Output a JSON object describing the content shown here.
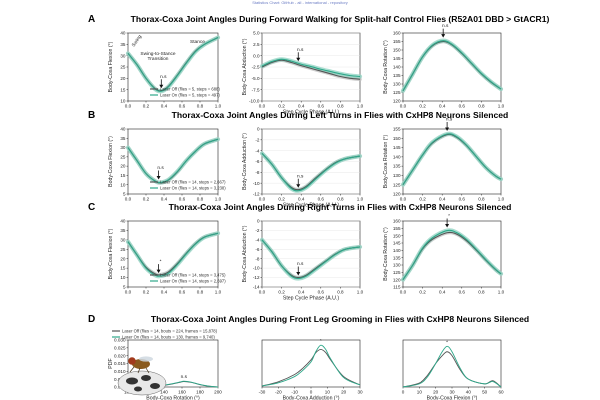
{
  "page": {
    "header_text": "Statistics Chart: GitHub - all - international - repository",
    "colors": {
      "laser_off": "#555555",
      "laser_on": "#2ea88a",
      "band_off": "#bdbdbd",
      "band_on": "#8fd3c1"
    }
  },
  "rows": [
    {
      "letter": "A",
      "title": "Thorax-Coxa Joint Angles During Forward Walking for Split-half Control Flies (R52A01 DBD > GtACR1)",
      "xlabel": "Step Cycle Phase (A.U.)",
      "xticks": [
        "0.0",
        "0.2",
        "0.4",
        "0.6",
        "0.8",
        "1.0"
      ],
      "legend": [
        "Laser Off (flies = 5, steps = 688)",
        "Laser On (flies = 5, steps = 497)"
      ],
      "texts": {
        "swing": "Swing",
        "stance": "Stance",
        "transition": "Swing-to-Stance\nTransition"
      },
      "panels": [
        {
          "ylabel": "Body-Coxa Flexion (°)",
          "ymin": 10,
          "ymax": 40,
          "yticks": [
            "10",
            "15",
            "20",
            "25",
            "30",
            "35",
            "40"
          ],
          "annot": "n.s",
          "annot_x": 0.37
        },
        {
          "ylabel": "Body-Coxa Abduction (°)",
          "ymin": -10,
          "ymax": 5,
          "yticks": [
            "-10.0",
            "-7.5",
            "-5.0",
            "-2.5",
            "0.0",
            "2.5",
            "5.0"
          ],
          "annot": "n.s",
          "annot_x": 0.37
        },
        {
          "ylabel": "Body-Coxa Rotation (°)",
          "ymin": 120,
          "ymax": 160,
          "yticks": [
            "120",
            "125",
            "130",
            "135",
            "140",
            "145",
            "150",
            "155",
            "160"
          ],
          "annot": "n.s",
          "annot_x": 0.41
        }
      ]
    },
    {
      "letter": "B",
      "title": "Thorax-Coxa Joint Angles During Left Turns in Flies with CxHP8 Neurons Silenced",
      "xlabel": "Step Cycle Phase (A.U.)",
      "xticks": [
        "0.0",
        "0.2",
        "0.4",
        "0.6",
        "0.8",
        "1.0"
      ],
      "legend": [
        "Laser Off (flies = 14, steps = 2,667)",
        "Laser On (flies = 14, steps = 3,238)"
      ],
      "panels": [
        {
          "ylabel": "Body-Coxa Flexion (°)",
          "ymin": 5,
          "ymax": 40,
          "yticks": [
            "5",
            "10",
            "15",
            "20",
            "25",
            "30",
            "35",
            "40"
          ],
          "annot": "n.s",
          "annot_x": 0.34
        },
        {
          "ylabel": "Body-Coxa Adduction (°)",
          "ymin": -12,
          "ymax": 0,
          "yticks": [
            "-12",
            "-10",
            "-8",
            "-6",
            "-4",
            "-2",
            "0"
          ],
          "annot": "n.s",
          "annot_x": 0.37
        },
        {
          "ylabel": "Body-Coxa Rotation (°)",
          "ymin": 120,
          "ymax": 155,
          "yticks": [
            "120",
            "125",
            "130",
            "135",
            "140",
            "145",
            "150",
            "155"
          ],
          "annot": "n.s",
          "annot_x": 0.45
        }
      ]
    },
    {
      "letter": "C",
      "title": "Thorax-Coxa Joint Angles During Right Turns in Flies with CxHP8 Neurons Silenced",
      "xlabel": "Step Cycle Phase (A.U.)",
      "xticks": [
        "0.0",
        "0.2",
        "0.4",
        "0.6",
        "0.8",
        "1.0"
      ],
      "legend": [
        "Laser Off (flies = 14, steps = 3,475)",
        "Laser On (flies = 14, steps = 2,697)"
      ],
      "panels": [
        {
          "ylabel": "Body-Coxa Flexion (°)",
          "ymin": 5,
          "ymax": 40,
          "yticks": [
            "5",
            "10",
            "15",
            "20",
            "25",
            "30",
            "35",
            "40"
          ],
          "annot": "*",
          "annot_x": 0.34
        },
        {
          "ylabel": "Body-Coxa Abduction (°)",
          "ymin": -14,
          "ymax": 0,
          "yticks": [
            "-14",
            "-12",
            "-10",
            "-8",
            "-6",
            "-4",
            "-2",
            "0"
          ],
          "annot": "n.s",
          "annot_x": 0.37
        },
        {
          "ylabel": "Body-Coxa Rotation (°)",
          "ymin": 115,
          "ymax": 160,
          "yticks": [
            "115",
            "120",
            "125",
            "130",
            "135",
            "140",
            "145",
            "150",
            "155",
            "160"
          ],
          "annot": "*",
          "annot_x": 0.45
        }
      ]
    }
  ],
  "rowD": {
    "letter": "D",
    "title": "Thorax-Coxa Joint Angles During Front Leg Grooming in Flies with CxHP8 Neurons Silenced",
    "ylabel": "PDF",
    "legend": [
      "Laser Off (flies = 14, bouts = 224, frames = 15,878)",
      "Laser On (flies = 14, bouts = 130, frames = 9,740)"
    ],
    "panels": [
      {
        "xlabel": "Body-Coxa Rotation (°)",
        "xmin": 100,
        "xmax": 200,
        "xticks": [
          "100",
          "120",
          "140",
          "160",
          "180",
          "200"
        ],
        "ymin": 0,
        "ymax": 0.03,
        "yticks": [
          "0.000",
          "0.005",
          "0.010",
          "0.015",
          "0.020",
          "0.025",
          "0.030"
        ],
        "annot": "n.s",
        "annot_x": 162
      },
      {
        "xlabel": "Body-Coxa Adduction (°)",
        "xmin": -30,
        "xmax": 30,
        "xticks": [
          "-30",
          "-20",
          "-10",
          "0",
          "10",
          "20",
          "30"
        ],
        "annot": "*",
        "annot_x": 6
      },
      {
        "xlabel": "Body-Coxa Flexion (°)",
        "xmin": 0,
        "xmax": 60,
        "xticks": [
          "0",
          "10",
          "20",
          "30",
          "40",
          "50",
          "60"
        ],
        "annot": "*",
        "annot_x": 27
      }
    ]
  },
  "chart_data": [
    {
      "type": "line",
      "row": "A",
      "panel": "flexion",
      "title": "Thorax-Coxa Joint Angles During Forward Walking for Split-half Control Flies (R52A01 DBD > GtACR1)",
      "xlabel": "Step Cycle Phase (A.U.)",
      "ylabel": "Body-Coxa Flexion (°)",
      "xlim": [
        0,
        1
      ],
      "ylim": [
        10,
        40
      ],
      "x": [
        0,
        0.1,
        0.2,
        0.3,
        0.37,
        0.45,
        0.55,
        0.65,
        0.75,
        0.85,
        1.0
      ],
      "series": [
        {
          "name": "Laser Off",
          "values": [
            31,
            26,
            20,
            15.5,
            14.5,
            16.5,
            21.5,
            27,
            32,
            35,
            38
          ]
        },
        {
          "name": "Laser On",
          "values": [
            31,
            26,
            20,
            15.3,
            14.3,
            16.3,
            21.3,
            26.8,
            31.8,
            35,
            38
          ]
        }
      ]
    },
    {
      "type": "line",
      "row": "A",
      "panel": "abduction",
      "xlabel": "Step Cycle Phase (A.U.)",
      "ylabel": "Body-Coxa Abduction (°)",
      "xlim": [
        0,
        1
      ],
      "ylim": [
        -10,
        5
      ],
      "x": [
        0,
        0.1,
        0.2,
        0.3,
        0.4,
        0.5,
        0.6,
        0.7,
        0.8,
        0.9,
        1.0
      ],
      "series": [
        {
          "name": "Laser Off",
          "values": [
            -2.5,
            -1.5,
            -1.0,
            -1.5,
            -2.2,
            -2.8,
            -3.4,
            -4.0,
            -4.6,
            -5.0,
            -5.2
          ]
        },
        {
          "name": "Laser On",
          "values": [
            -2.3,
            -1.3,
            -0.8,
            -1.2,
            -1.9,
            -2.4,
            -3.0,
            -3.5,
            -4.0,
            -4.4,
            -4.6
          ]
        }
      ]
    },
    {
      "type": "line",
      "row": "A",
      "panel": "rotation",
      "xlabel": "Step Cycle Phase (A.U.)",
      "ylabel": "Body-Coxa Rotation (°)",
      "xlim": [
        0,
        1
      ],
      "ylim": [
        120,
        160
      ],
      "x": [
        0,
        0.1,
        0.2,
        0.3,
        0.41,
        0.5,
        0.6,
        0.7,
        0.8,
        0.9,
        1.0
      ],
      "series": [
        {
          "name": "Laser Off",
          "values": [
            126,
            136,
            146,
            152.5,
            155,
            153,
            148,
            142,
            136,
            131,
            127
          ]
        },
        {
          "name": "Laser On",
          "values": [
            126,
            136,
            146,
            152.8,
            155.5,
            153.3,
            148.3,
            142.2,
            136.2,
            131.2,
            127
          ]
        }
      ]
    },
    {
      "type": "line",
      "row": "B",
      "panel": "flexion",
      "title": "Thorax-Coxa Joint Angles During Left Turns in Flies with CxHP8 Neurons Silenced",
      "xlabel": "Step Cycle Phase (A.U.)",
      "ylabel": "Body-Coxa Flexion (°)",
      "xlim": [
        0,
        1
      ],
      "ylim": [
        5,
        40
      ],
      "x": [
        0,
        0.1,
        0.2,
        0.3,
        0.36,
        0.45,
        0.55,
        0.65,
        0.75,
        0.85,
        1.0
      ],
      "series": [
        {
          "name": "Laser Off",
          "values": [
            30,
            23,
            16,
            12,
            11,
            12.5,
            17,
            23,
            28,
            32,
            34.5
          ]
        },
        {
          "name": "Laser On",
          "values": [
            30,
            23,
            16,
            12,
            11.2,
            12.7,
            17.2,
            23,
            28,
            32,
            34.5
          ]
        }
      ]
    },
    {
      "type": "line",
      "row": "B",
      "panel": "adduction",
      "xlabel": "Step Cycle Phase (A.U.)",
      "ylabel": "Body-Coxa Adduction (°)",
      "xlim": [
        0,
        1
      ],
      "ylim": [
        -12,
        0
      ],
      "x": [
        0,
        0.1,
        0.2,
        0.3,
        0.37,
        0.45,
        0.55,
        0.65,
        0.75,
        0.85,
        1.0
      ],
      "series": [
        {
          "name": "Laser Off",
          "values": [
            -4.5,
            -6.5,
            -9,
            -10.8,
            -11.2,
            -10.6,
            -9,
            -7.5,
            -6.2,
            -5.5,
            -5
          ]
        },
        {
          "name": "Laser On",
          "values": [
            -4.5,
            -6.5,
            -9,
            -11,
            -11.4,
            -10.8,
            -9.2,
            -7.6,
            -6.3,
            -5.5,
            -5
          ]
        }
      ]
    },
    {
      "type": "line",
      "row": "B",
      "panel": "rotation",
      "xlabel": "Step Cycle Phase (A.U.)",
      "ylabel": "Body-Coxa Rotation (°)",
      "xlim": [
        0,
        1
      ],
      "ylim": [
        120,
        155
      ],
      "x": [
        0,
        0.1,
        0.2,
        0.3,
        0.45,
        0.55,
        0.65,
        0.75,
        0.85,
        0.95,
        1.0
      ],
      "series": [
        {
          "name": "Laser Off",
          "values": [
            125,
            133,
            141,
            147.5,
            152,
            150.5,
            146,
            140,
            134,
            129.5,
            128
          ]
        },
        {
          "name": "Laser On",
          "values": [
            125,
            133,
            141,
            147.8,
            152.3,
            150.8,
            146.2,
            140,
            134,
            129.5,
            128
          ]
        }
      ]
    },
    {
      "type": "line",
      "row": "C",
      "panel": "flexion",
      "title": "Thorax-Coxa Joint Angles During Right Turns in Flies with CxHP8 Neurons Silenced",
      "xlabel": "Step Cycle Phase (A.U.)",
      "ylabel": "Body-Coxa Flexion (°)",
      "xlim": [
        0,
        1
      ],
      "ylim": [
        5,
        40
      ],
      "x": [
        0,
        0.1,
        0.2,
        0.3,
        0.36,
        0.45,
        0.55,
        0.65,
        0.75,
        0.85,
        1.0
      ],
      "series": [
        {
          "name": "Laser Off",
          "values": [
            29,
            22,
            15.5,
            12,
            11.5,
            13,
            17.5,
            23,
            28,
            31.5,
            33.5
          ]
        },
        {
          "name": "Laser On",
          "values": [
            29,
            22,
            15,
            11.3,
            10.8,
            12.3,
            17,
            22.7,
            27.8,
            31.4,
            33.5
          ]
        }
      ]
    },
    {
      "type": "line",
      "row": "C",
      "panel": "abduction",
      "xlabel": "Step Cycle Phase (A.U.)",
      "ylabel": "Body-Coxa Abduction (°)",
      "xlim": [
        0,
        1
      ],
      "ylim": [
        -14,
        0
      ],
      "x": [
        0,
        0.1,
        0.2,
        0.3,
        0.37,
        0.45,
        0.55,
        0.65,
        0.75,
        0.85,
        1.0
      ],
      "series": [
        {
          "name": "Laser Off",
          "values": [
            -4,
            -6.5,
            -9.5,
            -11.5,
            -12,
            -11.5,
            -10,
            -8.5,
            -7,
            -6,
            -5.5
          ]
        },
        {
          "name": "Laser On",
          "values": [
            -4,
            -6.5,
            -9.5,
            -11.7,
            -12.2,
            -11.7,
            -10.2,
            -8.6,
            -7.1,
            -6,
            -5.5
          ]
        }
      ]
    },
    {
      "type": "line",
      "row": "C",
      "panel": "rotation",
      "xlabel": "Step Cycle Phase (A.U.)",
      "ylabel": "Body-Coxa Rotation (°)",
      "xlim": [
        0,
        1
      ],
      "ylim": [
        115,
        160
      ],
      "x": [
        0,
        0.1,
        0.2,
        0.3,
        0.45,
        0.55,
        0.65,
        0.75,
        0.85,
        0.95,
        1.0
      ],
      "series": [
        {
          "name": "Laser Off",
          "values": [
            120,
            130,
            141,
            147.5,
            152,
            151,
            146.5,
            140,
            133,
            126.5,
            124
          ]
        },
        {
          "name": "Laser On",
          "values": [
            120,
            130,
            141.5,
            148.5,
            153.5,
            152,
            147.3,
            140.5,
            133.3,
            126.7,
            124
          ]
        }
      ]
    },
    {
      "type": "line",
      "row": "D",
      "panel": "rotation-pdf",
      "title": "Thorax-Coxa Joint Angles During Front Leg Grooming in Flies with CxHP8 Neurons Silenced",
      "xlabel": "Body-Coxa Rotation (°)",
      "ylabel": "PDF",
      "xlim": [
        100,
        200
      ],
      "ylim": [
        0,
        0.03
      ],
      "x": [
        100,
        110,
        120,
        130,
        140,
        150,
        158,
        162,
        170,
        180,
        190,
        200
      ],
      "series": [
        {
          "name": "Laser Off",
          "values": [
            0.0,
            0.0,
            0.0,
            0.0005,
            0.001,
            0.002,
            0.003,
            0.0035,
            0.003,
            0.0015,
            0.0005,
            0.0
          ]
        },
        {
          "name": "Laser On",
          "values": [
            0.0,
            0.0,
            0.0,
            0.0005,
            0.0012,
            0.0022,
            0.0032,
            0.0037,
            0.0031,
            0.0016,
            0.0005,
            0.0
          ]
        }
      ]
    },
    {
      "type": "line",
      "row": "D",
      "panel": "adduction-pdf",
      "xlabel": "Body-Coxa Adduction (°)",
      "xlim": [
        -30,
        30
      ],
      "x": [
        -30,
        -20,
        -10,
        -5,
        0,
        3,
        6,
        9,
        12,
        20,
        30
      ],
      "series": [
        {
          "name": "Laser Off",
          "values": [
            0.001,
            0.005,
            0.012,
            0.018,
            0.026,
            0.033,
            0.036,
            0.033,
            0.026,
            0.01,
            0.002
          ]
        },
        {
          "name": "Laser On",
          "values": [
            0.001,
            0.004,
            0.01,
            0.016,
            0.024,
            0.034,
            0.04,
            0.036,
            0.027,
            0.009,
            0.002
          ]
        }
      ]
    },
    {
      "type": "line",
      "row": "D",
      "panel": "flexion-pdf",
      "xlabel": "Body-Coxa Flexion (°)",
      "xlim": [
        0,
        60
      ],
      "x": [
        0,
        10,
        15,
        20,
        24,
        27,
        30,
        35,
        40,
        50,
        55,
        60
      ],
      "series": [
        {
          "name": "Laser Off",
          "values": [
            0.0,
            0.005,
            0.015,
            0.03,
            0.04,
            0.045,
            0.04,
            0.022,
            0.01,
            0.004,
            0.008,
            0.0
          ]
        },
        {
          "name": "Laser On",
          "values": [
            0.0,
            0.004,
            0.013,
            0.03,
            0.045,
            0.052,
            0.045,
            0.024,
            0.01,
            0.004,
            0.007,
            0.0
          ]
        }
      ]
    }
  ]
}
